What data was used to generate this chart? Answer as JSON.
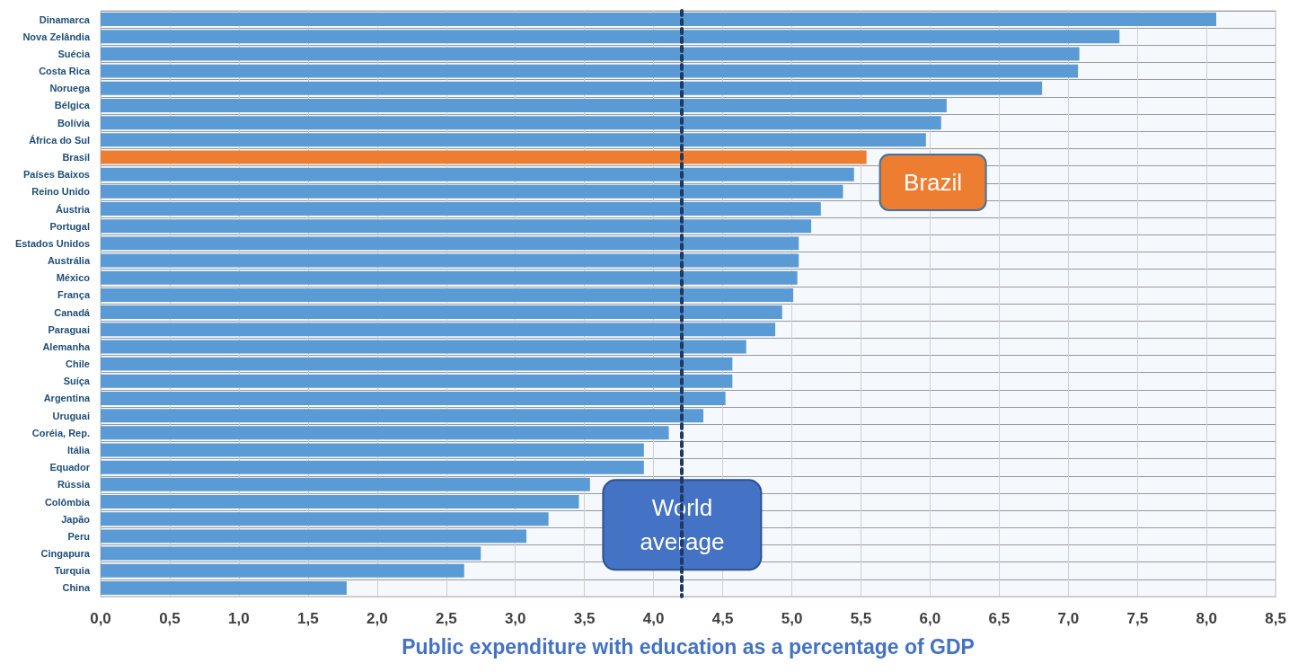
{
  "chart_data": {
    "type": "bar",
    "orientation": "horizontal",
    "xlabel": "Public expenditure with education as a percentage of GDP",
    "categories": [
      "Dinamarca",
      "Nova Zelândia",
      "Suécia",
      "Costa Rica",
      "Noruega",
      "Bélgica",
      "Bolívia",
      "África do Sul",
      "Brasil",
      "Países Baixos",
      "Reino Unido",
      "Áustria",
      "Portugal",
      "Estados Unidos",
      "Austrália",
      "México",
      "França",
      "Canadá",
      "Paraguai",
      "Alemanha",
      "Chile",
      "Suíça",
      "Argentina",
      "Uruguai",
      "Coréia, Rep.",
      "Itália",
      "Equador",
      "Rússia",
      "Colômbia",
      "Japão",
      "Peru",
      "Cingapura",
      "Turquia",
      "China"
    ],
    "values": [
      8.07,
      7.37,
      7.08,
      7.07,
      6.81,
      6.12,
      6.08,
      5.97,
      5.54,
      5.45,
      5.37,
      5.21,
      5.14,
      5.05,
      5.05,
      5.04,
      5.01,
      4.93,
      4.88,
      4.67,
      4.57,
      4.57,
      4.52,
      4.36,
      4.11,
      3.93,
      3.93,
      3.54,
      3.46,
      3.24,
      3.08,
      2.75,
      2.63,
      1.78
    ],
    "colors": [
      "#5b9bd5",
      "#5b9bd5",
      "#5b9bd5",
      "#5b9bd5",
      "#5b9bd5",
      "#5b9bd5",
      "#5b9bd5",
      "#5b9bd5",
      "#ed7d31",
      "#5b9bd5",
      "#5b9bd5",
      "#5b9bd5",
      "#5b9bd5",
      "#5b9bd5",
      "#5b9bd5",
      "#5b9bd5",
      "#5b9bd5",
      "#5b9bd5",
      "#5b9bd5",
      "#5b9bd5",
      "#5b9bd5",
      "#5b9bd5",
      "#5b9bd5",
      "#5b9bd5",
      "#5b9bd5",
      "#5b9bd5",
      "#5b9bd5",
      "#5b9bd5",
      "#5b9bd5",
      "#5b9bd5",
      "#5b9bd5",
      "#5b9bd5",
      "#5b9bd5",
      "#5b9bd5"
    ],
    "xlim": [
      0,
      8.5
    ],
    "xticks": [
      {
        "value": 0,
        "label": "0,0"
      },
      {
        "value": 0.5,
        "label": "0,5"
      },
      {
        "value": 1,
        "label": "1,0"
      },
      {
        "value": 1.5,
        "label": "1,5"
      },
      {
        "value": 2,
        "label": "2,0"
      },
      {
        "value": 2.5,
        "label": "2,5"
      },
      {
        "value": 3,
        "label": "3,0"
      },
      {
        "value": 3.5,
        "label": "3,5"
      },
      {
        "value": 4,
        "label": "4,0"
      },
      {
        "value": 4.5,
        "label": "4,5"
      },
      {
        "value": 5,
        "label": "5,0"
      },
      {
        "value": 5.5,
        "label": "5,5"
      },
      {
        "value": 6,
        "label": "6,0"
      },
      {
        "value": 6.5,
        "label": "6,5"
      },
      {
        "value": 7,
        "label": "7,0"
      },
      {
        "value": 7.5,
        "label": "7,5"
      },
      {
        "value": 8,
        "label": "8,0"
      },
      {
        "value": 8.5,
        "label": "8,5"
      }
    ],
    "ref_lines": [
      {
        "axis": "x",
        "value": 4.2,
        "label": "World average",
        "color": "#1f3864",
        "line_style": "dashed"
      }
    ],
    "annotations": [
      {
        "text": "Brazil",
        "x": 5.54,
        "y": "Brasil"
      }
    ],
    "grid": true
  }
}
